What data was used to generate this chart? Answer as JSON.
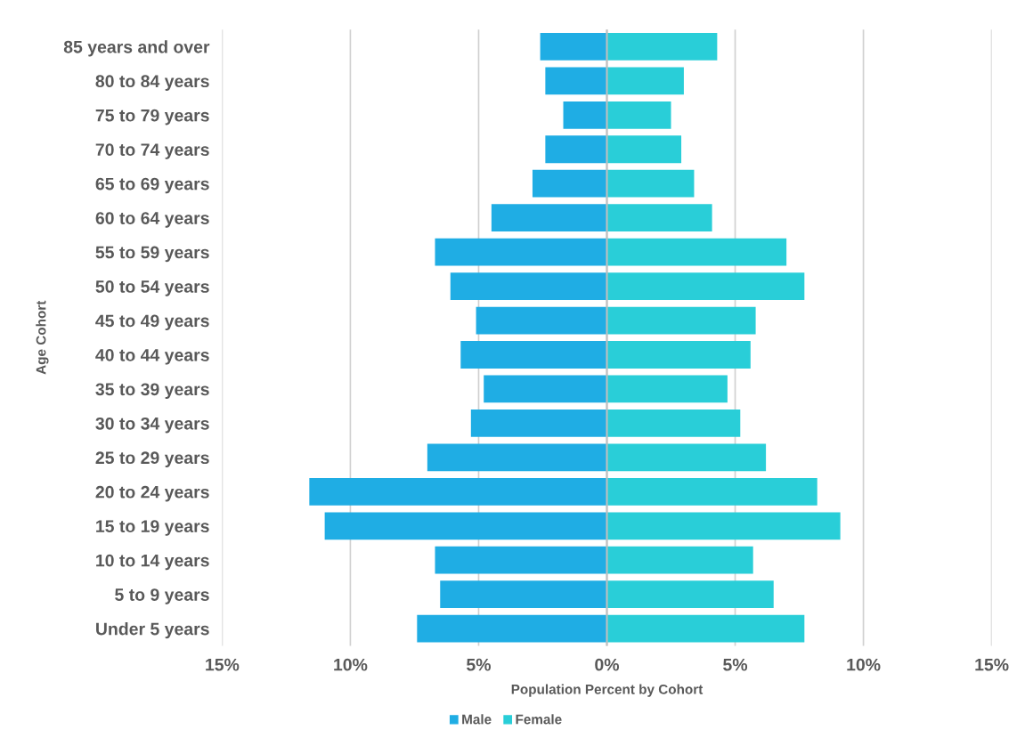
{
  "chart_data": {
    "type": "bar",
    "orientation": "horizontal",
    "xlabel": "Population Percent by Cohort",
    "ylabel": "Age Cohort",
    "categories": [
      "85 years and over",
      "80 to 84 years",
      "75 to 79 years",
      "70 to 74 years",
      "65 to 69 years",
      "60 to 64 years",
      "55 to 59 years",
      "50 to 54 years",
      "45 to 49 years",
      "40 to 44 years",
      "35 to 39 years",
      "30 to 34 years",
      "25 to 29 years",
      "20 to 24 years",
      "15 to 19 years",
      "10 to 14 years",
      "5 to 9 years",
      "Under 5 years"
    ],
    "series": [
      {
        "name": "Male",
        "color": "#1fade4",
        "values": [
          -2.6,
          -2.4,
          -1.7,
          -2.4,
          -2.9,
          -4.5,
          -6.7,
          -6.1,
          -5.1,
          -5.7,
          -4.8,
          -5.3,
          -7.0,
          -11.6,
          -11.0,
          -6.7,
          -6.5,
          -7.4
        ]
      },
      {
        "name": "Female",
        "color": "#29ced8",
        "values": [
          4.3,
          3.0,
          2.5,
          2.9,
          3.4,
          4.1,
          7.0,
          7.7,
          5.8,
          5.6,
          4.7,
          5.2,
          6.2,
          8.2,
          9.1,
          5.7,
          6.5,
          7.7
        ]
      }
    ],
    "xlim": [
      -15,
      15
    ],
    "xticks": [
      {
        "value": -15,
        "label": "15%"
      },
      {
        "value": -10,
        "label": "10%"
      },
      {
        "value": -5,
        "label": "5%"
      },
      {
        "value": 0,
        "label": "0%"
      },
      {
        "value": 5,
        "label": "5%"
      },
      {
        "value": 10,
        "label": "10%"
      },
      {
        "value": 15,
        "label": "15%"
      }
    ],
    "grid": "x",
    "legend": "bottom",
    "stacked": true
  }
}
